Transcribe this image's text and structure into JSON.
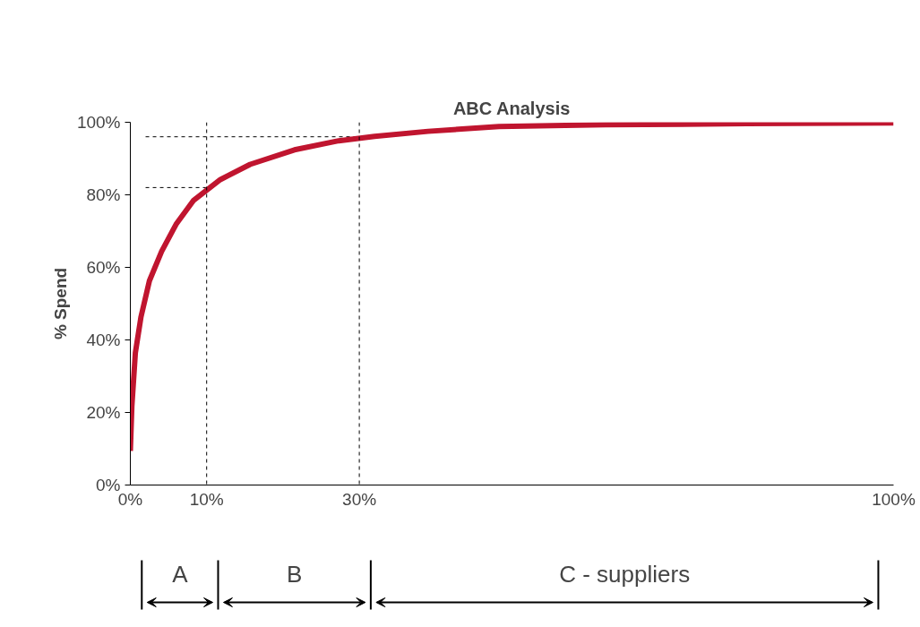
{
  "chart_data": {
    "type": "line",
    "title": "ABC Analysis",
    "ylabel": "% Spend",
    "x": [
      0,
      0.2,
      0.66,
      1.4,
      2.5,
      4.1,
      6.0,
      8.3,
      11.8,
      15.7,
      21.5,
      27.3,
      32.0,
      39,
      48.3,
      62.2,
      80.8,
      100
    ],
    "series": [
      {
        "color": "#c0152f",
        "values": [
          9.4,
          21.7,
          36.5,
          46.4,
          56.3,
          64.4,
          71.9,
          78.5,
          84.2,
          88.4,
          92.4,
          94.9,
          96.1,
          97.5,
          98.8,
          99.3,
          99.6,
          99.8
        ]
      }
    ],
    "xlim": [
      0,
      100
    ],
    "ylim": [
      0,
      100
    ],
    "xticks": [
      {
        "value": 0,
        "label": "0%"
      },
      {
        "value": 10,
        "label": "10%"
      },
      {
        "value": 30,
        "label": "30%"
      },
      {
        "value": 100,
        "label": "100%"
      }
    ],
    "yticks": [
      {
        "value": 0,
        "label": "0%"
      },
      {
        "value": 20,
        "label": "20%"
      },
      {
        "value": 40,
        "label": "40%"
      },
      {
        "value": 60,
        "label": "60%"
      },
      {
        "value": 80,
        "label": "80%"
      },
      {
        "value": 100,
        "label": "100%"
      }
    ],
    "ref_lines": [
      {
        "axis": "x",
        "value": 10,
        "line_style": "dashed",
        "color": "#000000"
      },
      {
        "axis": "x",
        "value": 30,
        "line_style": "dashed",
        "color": "#000000"
      },
      {
        "axis": "y",
        "value": 82,
        "line_style": "dashed",
        "color": "#000000"
      },
      {
        "axis": "y",
        "value": 96,
        "line_style": "dashed",
        "color": "#000000"
      }
    ],
    "annotations": [
      "A",
      "B",
      "C - suppliers"
    ],
    "grid": false,
    "marker": "none",
    "line_style": "solid"
  }
}
